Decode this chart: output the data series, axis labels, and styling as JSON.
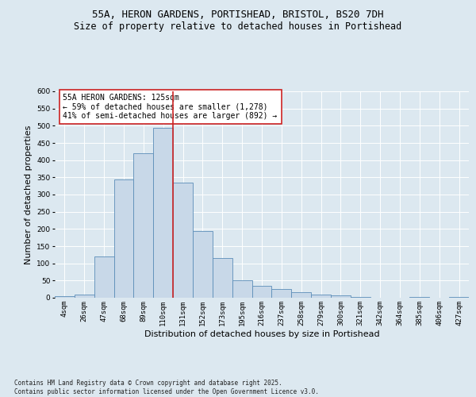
{
  "title_line1": "55A, HERON GARDENS, PORTISHEAD, BRISTOL, BS20 7DH",
  "title_line2": "Size of property relative to detached houses in Portishead",
  "xlabel": "Distribution of detached houses by size in Portishead",
  "ylabel": "Number of detached properties",
  "categories": [
    "4sqm",
    "26sqm",
    "47sqm",
    "68sqm",
    "89sqm",
    "110sqm",
    "131sqm",
    "152sqm",
    "173sqm",
    "195sqm",
    "216sqm",
    "237sqm",
    "258sqm",
    "279sqm",
    "300sqm",
    "321sqm",
    "342sqm",
    "364sqm",
    "385sqm",
    "406sqm",
    "427sqm"
  ],
  "values": [
    5,
    10,
    120,
    345,
    420,
    495,
    335,
    195,
    115,
    50,
    35,
    25,
    17,
    10,
    7,
    2,
    1,
    0,
    2,
    1,
    2
  ],
  "bar_color": "#c8d8e8",
  "bar_edge_color": "#5b8db8",
  "vline_color": "#cc2222",
  "annotation_text": "55A HERON GARDENS: 125sqm\n← 59% of detached houses are smaller (1,278)\n41% of semi-detached houses are larger (892) →",
  "annotation_box_facecolor": "#ffffff",
  "annotation_box_edgecolor": "#cc2222",
  "ylim": [
    0,
    600
  ],
  "yticks": [
    0,
    50,
    100,
    150,
    200,
    250,
    300,
    350,
    400,
    450,
    500,
    550,
    600
  ],
  "background_color": "#dce8f0",
  "plot_bg_color": "#dce8f0",
  "footnote": "Contains HM Land Registry data © Crown copyright and database right 2025.\nContains public sector information licensed under the Open Government Licence v3.0.",
  "grid_color": "#ffffff",
  "title_fontsize": 9,
  "subtitle_fontsize": 8.5,
  "tick_fontsize": 6.5,
  "label_fontsize": 8,
  "annot_fontsize": 7,
  "footnote_fontsize": 5.5
}
